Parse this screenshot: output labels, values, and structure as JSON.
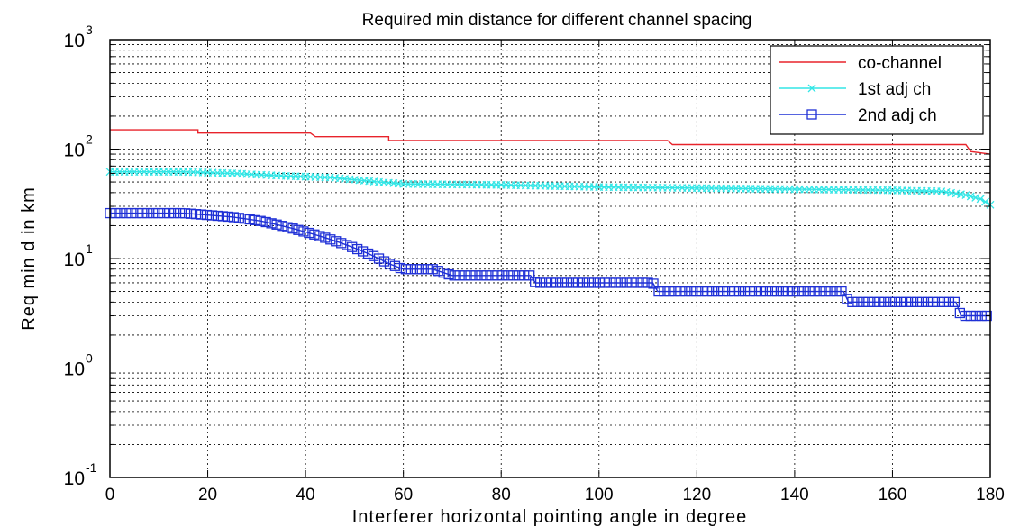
{
  "chart_data": {
    "type": "line",
    "title": "Required min distance for different channel spacing",
    "xlabel": "Interferer horizontal pointing angle in degree",
    "ylabel": "Req min d in km",
    "xlim": [
      0,
      180
    ],
    "ylim": [
      0.1,
      1000
    ],
    "yscale": "log",
    "grid": true,
    "legend": "top-right",
    "x_ticks": [
      "0",
      "20",
      "40",
      "60",
      "80",
      "100",
      "120",
      "140",
      "160",
      "180"
    ],
    "y_ticks": [
      {
        "base": "10",
        "exp": "-1"
      },
      {
        "base": "10",
        "exp": "0"
      },
      {
        "base": "10",
        "exp": "1"
      },
      {
        "base": "10",
        "exp": "2"
      },
      {
        "base": "10",
        "exp": "3"
      }
    ],
    "series": [
      {
        "name": "co-channel",
        "color": "#e8232b",
        "marker": "none",
        "points": [
          [
            0,
            150
          ],
          [
            18,
            150
          ],
          [
            18,
            140
          ],
          [
            41,
            140
          ],
          [
            42,
            130
          ],
          [
            57,
            130
          ],
          [
            57,
            120
          ],
          [
            114,
            120
          ],
          [
            115,
            110
          ],
          [
            175,
            110
          ],
          [
            176,
            95
          ],
          [
            180,
            90
          ]
        ]
      },
      {
        "name": "1st adj ch",
        "color": "#33e6e6",
        "marker": "x",
        "points": [
          [
            0,
            62
          ],
          [
            15,
            62
          ],
          [
            25,
            60
          ],
          [
            35,
            57
          ],
          [
            45,
            55
          ],
          [
            55,
            50
          ],
          [
            60,
            48
          ],
          [
            80,
            47
          ],
          [
            100,
            45
          ],
          [
            120,
            44
          ],
          [
            140,
            43
          ],
          [
            160,
            42
          ],
          [
            170,
            41
          ],
          [
            175,
            38
          ],
          [
            178,
            35
          ],
          [
            180,
            31
          ]
        ]
      },
      {
        "name": "2nd adj ch",
        "color": "#1f30d6",
        "marker": "square",
        "points": [
          [
            0,
            26
          ],
          [
            15,
            26
          ],
          [
            20,
            25
          ],
          [
            25,
            24
          ],
          [
            28,
            23
          ],
          [
            31,
            22
          ],
          [
            33,
            21
          ],
          [
            35,
            20
          ],
          [
            37,
            19
          ],
          [
            39,
            18
          ],
          [
            41,
            17
          ],
          [
            43,
            16
          ],
          [
            45,
            15
          ],
          [
            47,
            14
          ],
          [
            49,
            13
          ],
          [
            51,
            12
          ],
          [
            53,
            11
          ],
          [
            55,
            10
          ],
          [
            57,
            9
          ],
          [
            60,
            8
          ],
          [
            66,
            8
          ],
          [
            70,
            7
          ],
          [
            86,
            7
          ],
          [
            87,
            6
          ],
          [
            111,
            6
          ],
          [
            112,
            5
          ],
          [
            150,
            5
          ],
          [
            151,
            4
          ],
          [
            173,
            4
          ],
          [
            174,
            3
          ],
          [
            180,
            3
          ]
        ]
      }
    ]
  }
}
